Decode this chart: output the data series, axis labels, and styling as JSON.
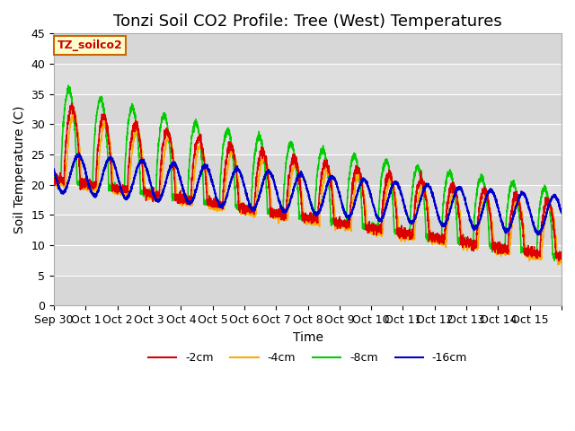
{
  "title": "Tonzi Soil CO2 Profile: Tree (West) Temperatures",
  "xlabel": "Time",
  "ylabel": "Soil Temperature (C)",
  "ylim": [
    0,
    45
  ],
  "xlim": [
    0,
    16
  ],
  "xtick_positions": [
    0,
    1,
    2,
    3,
    4,
    5,
    6,
    7,
    8,
    9,
    10,
    11,
    12,
    13,
    14,
    15,
    16
  ],
  "xtick_labels": [
    "Sep 30",
    "Oct 1",
    "Oct 2",
    "Oct 3",
    "Oct 4",
    "Oct 5",
    "Oct 6",
    "Oct 7",
    "Oct 8",
    "Oct 9",
    "Oct 10",
    "Oct 11",
    "Oct 12",
    "Oct 13",
    "Oct 14",
    "Oct 15",
    ""
  ],
  "colors": {
    "2cm": "#dd0000",
    "4cm": "#ffaa00",
    "8cm": "#00cc00",
    "16cm": "#0000cc"
  },
  "legend_label": "TZ_soilco2",
  "bg_color": "#e8e8e8",
  "title_fontsize": 13,
  "axis_fontsize": 10,
  "tick_fontsize": 9
}
